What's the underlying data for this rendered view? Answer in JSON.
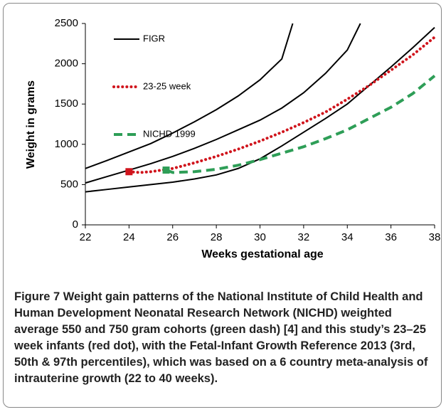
{
  "chart_data": {
    "type": "line",
    "xlabel": "Weeks gestational age",
    "ylabel": "Weight in grams",
    "xlim": [
      22,
      38
    ],
    "xticks": [
      22,
      24,
      26,
      28,
      30,
      32,
      34,
      36,
      38
    ],
    "ylim": [
      0,
      2500
    ],
    "yticks": [
      0,
      500,
      1000,
      1500,
      2000,
      2500
    ],
    "legend": "upper left",
    "series": [
      {
        "name": "FIGR",
        "color": "#000000",
        "dash": "solid",
        "curves": [
          {
            "x": [
              22,
              23,
              24,
              25,
              26,
              27,
              28,
              29,
              30,
              31,
              31.5
            ],
            "values": [
              700,
              800,
              905,
              1010,
              1140,
              1280,
              1430,
              1600,
              1800,
              2060,
              2500
            ]
          },
          {
            "x": [
              22,
              23,
              24,
              25,
              26,
              27,
              28,
              29,
              30,
              31,
              32,
              33,
              34,
              34.6
            ],
            "values": [
              520,
              600,
              680,
              760,
              850,
              950,
              1060,
              1180,
              1300,
              1450,
              1640,
              1880,
              2170,
              2500
            ]
          },
          {
            "x": [
              22,
              23,
              24,
              25,
              26,
              27,
              28,
              29,
              30,
              31,
              32,
              33,
              34,
              35,
              36,
              37,
              38
            ],
            "values": [
              410,
              440,
              470,
              500,
              530,
              570,
              620,
              700,
              820,
              980,
              1150,
              1320,
              1500,
              1730,
              1960,
              2200,
              2450
            ]
          }
        ]
      },
      {
        "name": "23-25 week",
        "color": "#d0141c",
        "dash": "dot",
        "x": [
          24,
          24.5,
          25,
          26,
          27,
          28,
          29,
          30,
          31,
          32,
          33,
          34,
          35,
          36,
          37,
          38
        ],
        "values": [
          660,
          650,
          660,
          700,
          770,
          850,
          940,
          1040,
          1150,
          1270,
          1400,
          1560,
          1730,
          1920,
          2110,
          2330
        ]
      },
      {
        "name": "NICHD 1999",
        "color": "#2e9e57",
        "dash": "dash",
        "x": [
          25.7,
          26,
          27,
          28,
          29,
          30,
          31,
          32,
          33,
          34,
          35,
          36,
          37,
          38
        ],
        "values": [
          680,
          650,
          660,
          690,
          740,
          810,
          890,
          970,
          1070,
          1180,
          1320,
          1460,
          1630,
          1850
        ]
      }
    ]
  },
  "caption": {
    "label": "Figure 7",
    "text": "Weight gain patterns of the National Institute of Child Health and Human Development Neonatal Research Network (NICHD) weighted average 550 and 750 gram cohorts (green dash) [4] and this study’s 23–25 week infants (red dot), with the Fetal-Infant Growth Reference 2013 (3rd, 50th & 97th percentiles), which was based on a 6 country meta-analysis of intrauterine growth (22 to 40 weeks)."
  }
}
